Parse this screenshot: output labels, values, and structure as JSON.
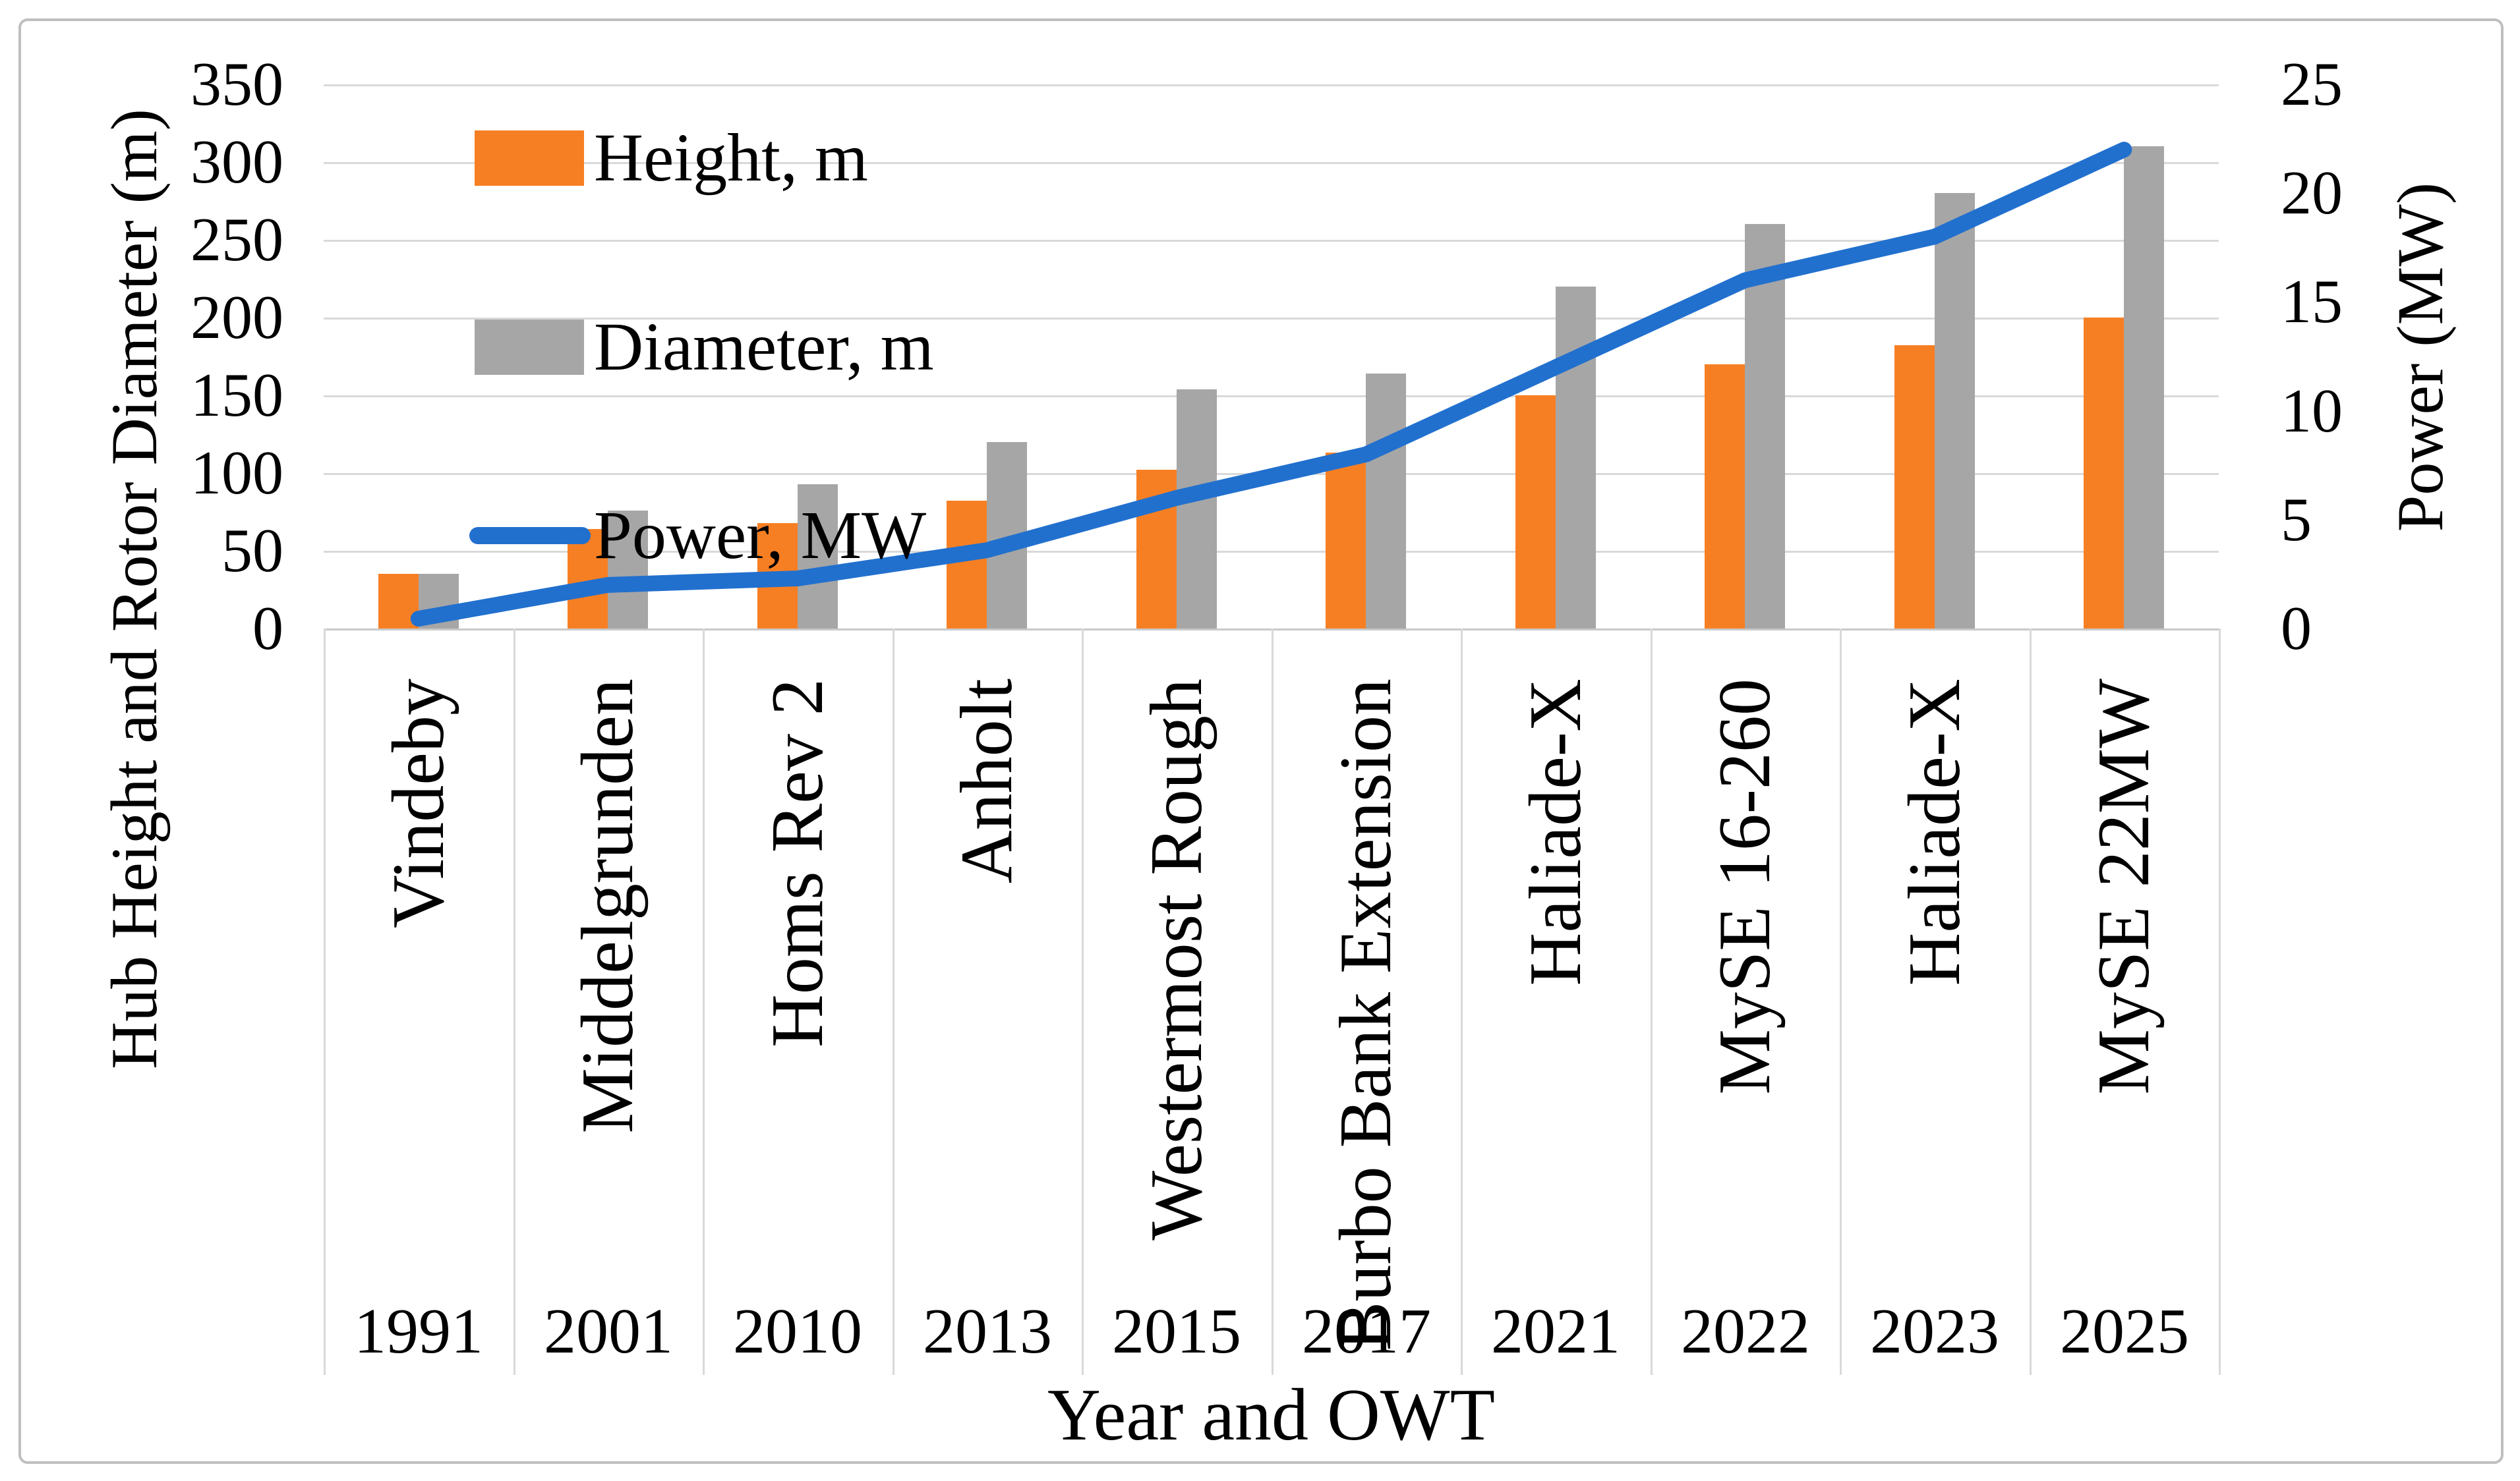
{
  "chart_data": {
    "type": "bar+line-combo",
    "categories": [
      "Vindeby",
      "Middelgrunden",
      "Homs Rev 2",
      "Anholt",
      "Westermost Rough",
      "Burbo Bank Extension",
      "Haliade-X",
      "MySE 16-260",
      "Haliade-X",
      "MySE 22MW"
    ],
    "years": [
      "1991",
      "2001",
      "2010",
      "2013",
      "2015",
      "2017",
      "2021",
      "2022",
      "2023",
      "2025"
    ],
    "series": [
      {
        "name": "Height, m",
        "type": "bar",
        "axis": "left",
        "color": "#F77F23",
        "values": [
          35,
          64,
          68,
          82,
          102,
          113,
          150,
          170,
          182,
          200
        ]
      },
      {
        "name": "Diameter, m",
        "type": "bar",
        "axis": "left",
        "color": "#A6A6A6",
        "values": [
          35,
          76,
          93,
          120,
          154,
          164,
          220,
          260,
          280,
          310
        ]
      },
      {
        "name": "Power, MW",
        "type": "line",
        "axis": "right",
        "color": "#2170CE",
        "values": [
          0.45,
          2,
          2.3,
          3.6,
          6,
          8,
          12,
          16,
          18,
          22
        ]
      }
    ],
    "axes": {
      "left": {
        "label": "Hub Height and Rotor Diameter (m)",
        "min": 0,
        "max": 350,
        "step": 50,
        "ticks": [
          "350",
          "300",
          "250",
          "200",
          "150",
          "100",
          "50",
          "0"
        ]
      },
      "right": {
        "label": "Power (MW)",
        "min": 0,
        "max": 25,
        "step": 5,
        "ticks": [
          "25",
          "20",
          "15",
          "10",
          "5",
          "0"
        ]
      },
      "x": {
        "label": "Year and OWT"
      }
    },
    "legend_position": "top-left-inside",
    "grid": "horizontal-on",
    "colors": {
      "gridline": "#D9D9D9",
      "axis_line": "#C9C9C9",
      "figure_border": "#BFBFBF",
      "text": "#000000"
    }
  }
}
